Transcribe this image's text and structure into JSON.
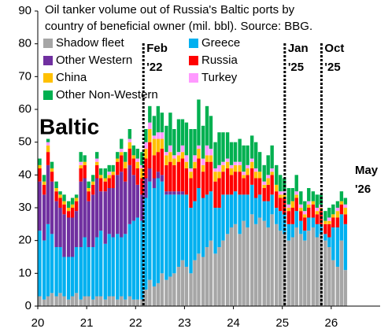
{
  "chart_data": {
    "type": "stacked-bar",
    "title": [
      "Oil tanker volume out of Russia's Baltic ports by",
      "country of beneficial owner (mil. bbl). Source: BBG."
    ],
    "label": "Baltic",
    "x": [
      20.04,
      20.13,
      20.21,
      20.29,
      20.38,
      20.46,
      20.54,
      20.63,
      20.71,
      20.79,
      20.88,
      20.96,
      21.04,
      21.13,
      21.21,
      21.29,
      21.38,
      21.46,
      21.54,
      21.63,
      21.71,
      21.79,
      21.88,
      21.96,
      22.04,
      22.13,
      22.21,
      22.29,
      22.38,
      22.46,
      22.54,
      22.63,
      22.71,
      22.79,
      22.88,
      22.96,
      23.04,
      23.13,
      23.21,
      23.29,
      23.38,
      23.46,
      23.54,
      23.63,
      23.71,
      23.79,
      23.88,
      23.96,
      24.04,
      24.13,
      24.21,
      24.29,
      24.38,
      24.46,
      24.54,
      24.63,
      24.71,
      24.79,
      24.88,
      24.96,
      25.04,
      25.13,
      25.21,
      25.29,
      25.38,
      25.46,
      25.54,
      25.63,
      25.71,
      25.79,
      25.88,
      25.96,
      26.04,
      26.13,
      26.21,
      26.29
    ],
    "series": [
      {
        "name": "Shadow fleet",
        "color": "#a6a6a6",
        "values": [
          3,
          2,
          3,
          4,
          3,
          4,
          3,
          2,
          3,
          4,
          2,
          3,
          3,
          2,
          3,
          3,
          2,
          3,
          3,
          2,
          3,
          2,
          3,
          2,
          2,
          2,
          5,
          8,
          6,
          7,
          10,
          8,
          9,
          10,
          12,
          14,
          12,
          10,
          14,
          16,
          15,
          18,
          20,
          16,
          18,
          20,
          22,
          24,
          25,
          22,
          26,
          24,
          28,
          25,
          27,
          26,
          24,
          28,
          25,
          23,
          22,
          20,
          21,
          24,
          22,
          20,
          23,
          24,
          21,
          22,
          20,
          18,
          14,
          12,
          20,
          11
        ]
      },
      {
        "name": "Greece",
        "color": "#00b0f0",
        "values": [
          20,
          18,
          22,
          18,
          15,
          14,
          12,
          13,
          12,
          14,
          16,
          18,
          15,
          16,
          18,
          20,
          17,
          19,
          18,
          20,
          18,
          20,
          22,
          24,
          25,
          24,
          28,
          30,
          30,
          32,
          28,
          26,
          25,
          24,
          22,
          20,
          22,
          20,
          18,
          20,
          18,
          16,
          15,
          14,
          12,
          14,
          12,
          10,
          10,
          12,
          8,
          10,
          9,
          8,
          7,
          6,
          8,
          6,
          5,
          6,
          6,
          5,
          4,
          5,
          4,
          3,
          4,
          3,
          4,
          3,
          2,
          3,
          10,
          12,
          8,
          14
        ]
      },
      {
        "name": "Other Western",
        "color": "#7030a0",
        "values": [
          15,
          14,
          18,
          16,
          14,
          12,
          13,
          12,
          12,
          11,
          20,
          18,
          14,
          16,
          18,
          12,
          16,
          14,
          15,
          18,
          20,
          16,
          18,
          14,
          10,
          8,
          6,
          4,
          3,
          2,
          2,
          1,
          1,
          1,
          1,
          1,
          0,
          0,
          0,
          0,
          0,
          0,
          0,
          0,
          0,
          0,
          0,
          0,
          0,
          0,
          0,
          0,
          0,
          0,
          0,
          0,
          0,
          0,
          0,
          0,
          0,
          0,
          0,
          0,
          0,
          0,
          0,
          0,
          0,
          0,
          0,
          0,
          0,
          0,
          0,
          0
        ]
      },
      {
        "name": "Russia",
        "color": "#ff0000",
        "values": [
          4,
          3,
          4,
          3,
          3,
          3,
          3,
          2,
          3,
          3,
          4,
          4,
          3,
          3,
          4,
          4,
          3,
          3,
          4,
          4,
          5,
          4,
          5,
          5,
          5,
          5,
          6,
          8,
          7,
          6,
          8,
          8,
          9,
          8,
          9,
          10,
          8,
          9,
          10,
          9,
          8,
          10,
          9,
          8,
          9,
          7,
          8,
          6,
          6,
          7,
          5,
          6,
          5,
          6,
          5,
          4,
          5,
          6,
          5,
          4,
          5,
          4,
          5,
          4,
          3,
          4,
          3,
          4,
          3,
          4,
          3,
          4,
          3,
          3,
          3,
          3
        ]
      },
      {
        "name": "China",
        "color": "#ffc000",
        "values": [
          1,
          1,
          2,
          1,
          1,
          1,
          1,
          1,
          1,
          1,
          1,
          1,
          1,
          1,
          1,
          1,
          1,
          1,
          1,
          1,
          1,
          2,
          2,
          1,
          2,
          3,
          3,
          4,
          5,
          4,
          3,
          3,
          3,
          2,
          2,
          2,
          2,
          2,
          2,
          3,
          2,
          2,
          2,
          3,
          2,
          2,
          2,
          2,
          2,
          2,
          1,
          2,
          2,
          2,
          2,
          1,
          2,
          1,
          2,
          1,
          1,
          1,
          2,
          1,
          1,
          1,
          1,
          1,
          1,
          1,
          1,
          1,
          1,
          2,
          1,
          2
        ]
      },
      {
        "name": "Turkey",
        "color": "#ff99ff",
        "values": [
          0,
          0,
          1,
          0,
          0,
          0,
          0,
          0,
          0,
          0,
          1,
          0,
          0,
          0,
          1,
          0,
          0,
          1,
          0,
          0,
          1,
          0,
          1,
          0,
          1,
          1,
          2,
          2,
          1,
          2,
          2,
          1,
          2,
          1,
          1,
          2,
          2,
          1,
          2,
          1,
          2,
          3,
          2,
          1,
          2,
          1,
          1,
          1,
          1,
          1,
          1,
          1,
          1,
          1,
          0,
          1,
          1,
          1,
          0,
          1,
          1,
          1,
          0,
          1,
          1,
          1,
          1,
          0,
          1,
          1,
          0,
          1,
          0,
          1,
          0,
          1
        ]
      },
      {
        "name": "Other Non-Western",
        "color": "#00b050",
        "values": [
          2,
          2,
          1,
          2,
          2,
          1,
          2,
          2,
          2,
          1,
          3,
          2,
          2,
          2,
          2,
          2,
          3,
          2,
          2,
          2,
          3,
          3,
          3,
          3,
          3,
          4,
          4,
          5,
          6,
          8,
          6,
          8,
          10,
          8,
          10,
          8,
          10,
          12,
          8,
          14,
          10,
          12,
          10,
          8,
          10,
          9,
          8,
          7,
          6,
          7,
          8,
          6,
          7,
          8,
          6,
          5,
          6,
          7,
          6,
          5,
          4,
          5,
          4,
          5,
          4,
          3,
          4,
          3,
          4,
          3,
          3,
          3,
          3,
          2,
          3,
          2
        ]
      }
    ],
    "annotations": [
      {
        "text": [
          "Feb",
          "'22"
        ],
        "x": 22.16,
        "line": true
      },
      {
        "text": [
          "Jan",
          "'25"
        ],
        "x": 25.05,
        "line": true
      },
      {
        "text": [
          "Oct",
          "'25"
        ],
        "x": 25.8,
        "line": true
      },
      {
        "text": [
          "May",
          "'26"
        ],
        "x": 26.42,
        "line": false
      }
    ],
    "xlim": [
      20,
      27
    ],
    "xticks": [
      20,
      21,
      22,
      23,
      24,
      25,
      26
    ],
    "ylim": [
      0,
      90
    ],
    "yticks": [
      0,
      10,
      20,
      30,
      40,
      50,
      60,
      70,
      80,
      90
    ]
  }
}
